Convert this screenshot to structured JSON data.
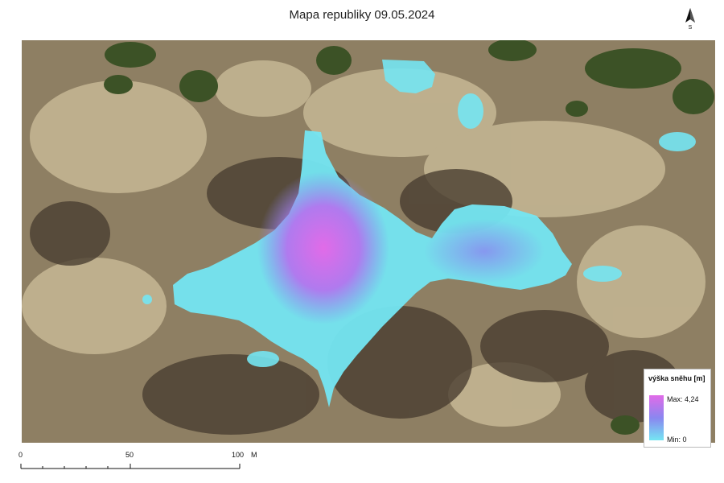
{
  "title": "Mapa republiky 09.05.2024",
  "north_arrow": {
    "label": "S",
    "icon": "north-arrow-icon"
  },
  "legend": {
    "title": "výška sněhu [m]",
    "max_label": "Max: 4,24",
    "min_label": "Min: 0",
    "max_value": 4.24,
    "min_value": 0,
    "colors": {
      "max": "#e16be8",
      "mid": "#8a86f0",
      "min": "#74e6f2"
    }
  },
  "scalebar": {
    "labels": [
      "0",
      "50",
      "100"
    ],
    "unit": "M"
  },
  "colors": {
    "terrain_base": "#9b8a6d",
    "terrain_light": "#cdbf9b",
    "terrain_dark": "#4a3e31",
    "forest": "#3c5226"
  }
}
